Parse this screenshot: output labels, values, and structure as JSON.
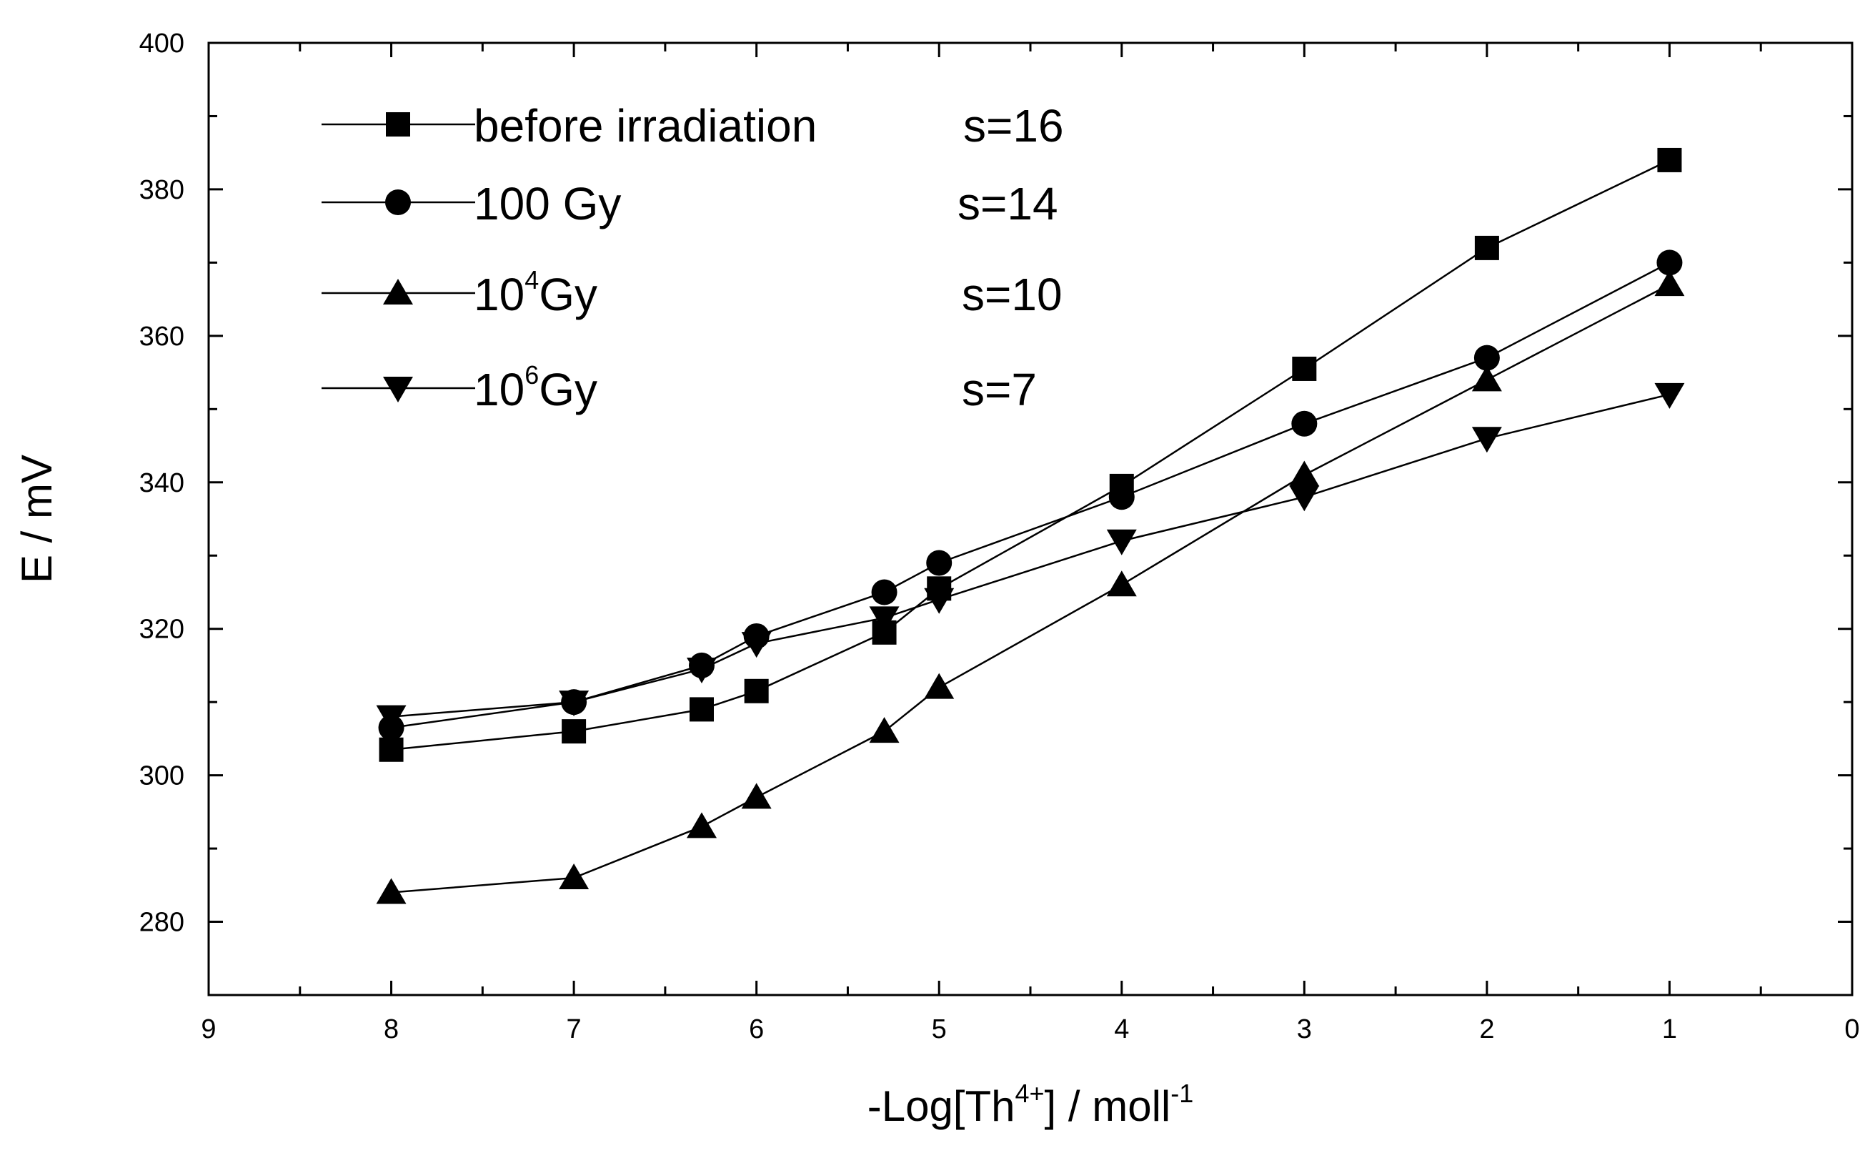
{
  "chart_data": {
    "type": "line",
    "xlabel": {
      "main": "-Log[Th",
      "sup": "4+",
      "mid": "] / moll",
      "sup2": "-1"
    },
    "ylabel": "E / mV",
    "xlim": [
      9,
      0
    ],
    "ylim": [
      270,
      400
    ],
    "x_reversed": true,
    "x_ticks": [
      "9",
      "8",
      "7",
      "6",
      "5",
      "4",
      "3",
      "2",
      "1",
      "0"
    ],
    "y_ticks": [
      "280",
      "300",
      "320",
      "340",
      "360",
      "380",
      "400"
    ],
    "legend_position": "top-left",
    "series": [
      {
        "name": "before irradiation",
        "name_sup": "",
        "name_tail": "",
        "slope": "s=16",
        "marker": "square",
        "x": [
          8,
          7,
          6.3,
          6,
          5.3,
          5,
          4,
          3,
          2,
          1
        ],
        "y": [
          303.5,
          306,
          309,
          311.5,
          319.5,
          325.5,
          339.5,
          355.5,
          372,
          384
        ]
      },
      {
        "name": "100 Gy",
        "name_sup": "",
        "name_tail": "",
        "slope": "s=14",
        "marker": "circle",
        "x": [
          8,
          7,
          6.3,
          6,
          5.3,
          5,
          4,
          3,
          2,
          1
        ],
        "y": [
          306.5,
          310,
          315,
          319,
          325,
          329,
          338,
          348,
          357,
          370
        ]
      },
      {
        "name": "10",
        "name_sup": "4",
        "name_tail": "Gy",
        "slope": "s=10",
        "marker": "triangle-up",
        "x": [
          8,
          7,
          6.3,
          6,
          5.3,
          5,
          4,
          3,
          2,
          1
        ],
        "y": [
          284,
          286,
          293,
          297,
          306,
          312,
          326,
          341,
          354,
          367
        ]
      },
      {
        "name": "10",
        "name_sup": "6",
        "name_tail": "Gy",
        "slope": "s=7",
        "marker": "triangle-down",
        "x": [
          8,
          7,
          6.3,
          6,
          5.3,
          5,
          4,
          3,
          2,
          1
        ],
        "y": [
          308,
          310,
          314.5,
          318,
          321.5,
          324,
          332,
          338,
          346,
          352
        ]
      }
    ]
  }
}
